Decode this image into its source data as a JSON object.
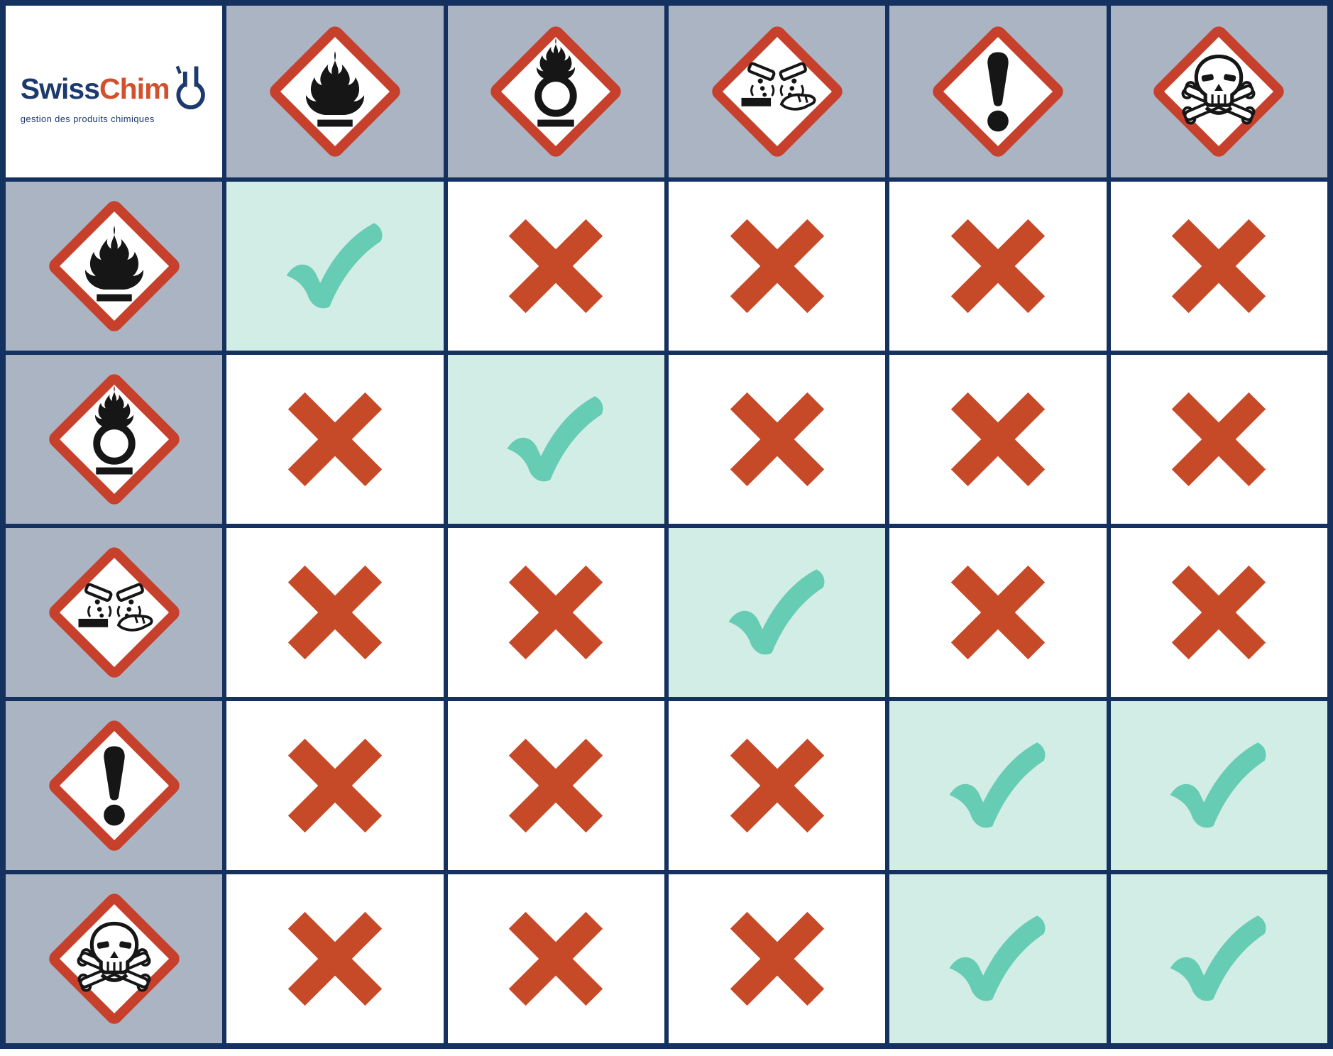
{
  "title": "SwissChim chemical hazard pictogram storage compatibility matrix",
  "logo": {
    "brand_part1": "Swiss",
    "brand_part2": "Chim",
    "tagline": "gestion des produits chimiques",
    "flask_icon": "flask-icon"
  },
  "colors": {
    "header_bg": "#aab4c3",
    "grid_line": "#15315f",
    "check_bg": "#d2ede5",
    "check_mark": "#67ccb4",
    "cross_mark": "#c64a28",
    "picto_red": "#c6402b",
    "glyph_black": "#161616",
    "logo_navy": "#1c3a6d",
    "logo_orange": "#d1512e",
    "cell_bg": "#ffffff"
  },
  "columns": [
    {
      "id": "flammable",
      "icon": "flame-icon"
    },
    {
      "id": "oxidizing",
      "icon": "flame-over-circle-icon"
    },
    {
      "id": "corrosive",
      "icon": "corrosion-icon"
    },
    {
      "id": "irritant",
      "icon": "exclamation-mark-icon"
    },
    {
      "id": "toxic",
      "icon": "skull-crossbones-icon"
    }
  ],
  "rows": [
    {
      "id": "flammable",
      "icon": "flame-icon"
    },
    {
      "id": "oxidizing",
      "icon": "flame-over-circle-icon"
    },
    {
      "id": "corrosive",
      "icon": "corrosion-icon"
    },
    {
      "id": "irritant",
      "icon": "exclamation-mark-icon"
    },
    {
      "id": "toxic",
      "icon": "skull-crossbones-icon"
    }
  ],
  "marks": {
    "check_icon": "check-icon",
    "cross_icon": "cross-icon"
  },
  "matrix": [
    [
      "check",
      "cross",
      "cross",
      "cross",
      "cross"
    ],
    [
      "cross",
      "check",
      "cross",
      "cross",
      "cross"
    ],
    [
      "cross",
      "cross",
      "check",
      "cross",
      "cross"
    ],
    [
      "cross",
      "cross",
      "cross",
      "check",
      "check"
    ],
    [
      "cross",
      "cross",
      "cross",
      "check",
      "check"
    ]
  ]
}
